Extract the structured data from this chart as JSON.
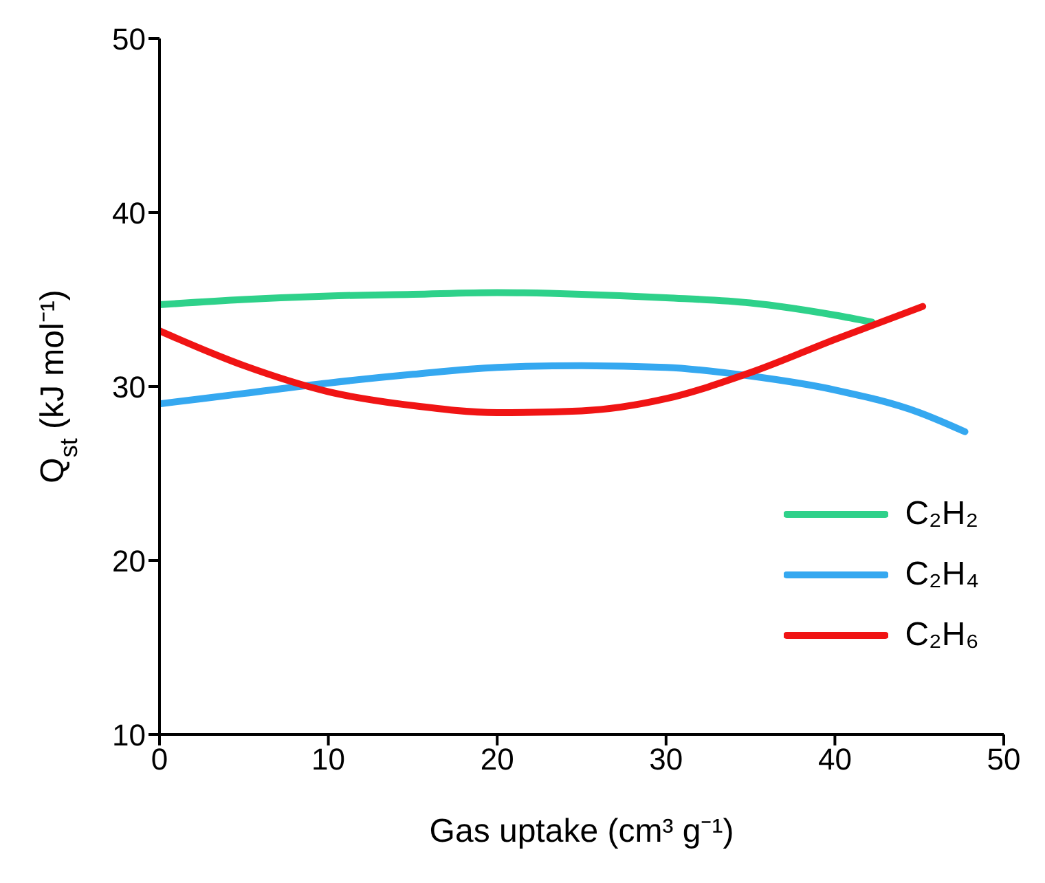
{
  "chart_data": {
    "type": "line",
    "xlabel": "Gas uptake (cm³ g⁻¹)",
    "ylabel": "Q$_{st}$ (kJ mol⁻¹)",
    "xlim": [
      0,
      50
    ],
    "xticks": [
      0,
      10,
      20,
      30,
      40,
      50
    ],
    "ylim": [
      10,
      50
    ],
    "yticks": [
      10,
      20,
      30,
      40,
      50
    ],
    "grid": false,
    "legend": "bottom right",
    "marker": "none",
    "line_style": "solid",
    "series": [
      {
        "name": "C₂H₂",
        "color": "#2ed18a",
        "x": [
          0,
          5,
          10,
          15,
          20,
          25,
          30,
          35,
          40,
          42.2
        ],
        "values": [
          34.7,
          35.0,
          35.2,
          35.3,
          35.4,
          35.3,
          35.1,
          34.8,
          34.1,
          33.7
        ]
      },
      {
        "name": "C₂H₄",
        "color": "#35a8f0",
        "x": [
          0,
          5,
          10,
          15,
          20,
          25,
          30,
          35,
          40,
          45,
          47.7
        ],
        "values": [
          29.0,
          29.6,
          30.2,
          30.7,
          31.1,
          31.2,
          31.1,
          30.6,
          29.8,
          28.5,
          27.4
        ]
      },
      {
        "name": "C₂H₆",
        "color": "#f01414",
        "x": [
          0,
          5,
          10,
          15,
          20,
          25,
          30,
          35,
          40,
          45.2
        ],
        "values": [
          33.2,
          31.2,
          29.7,
          28.9,
          28.5,
          28.6,
          29.3,
          30.8,
          32.7,
          34.6
        ]
      }
    ]
  }
}
